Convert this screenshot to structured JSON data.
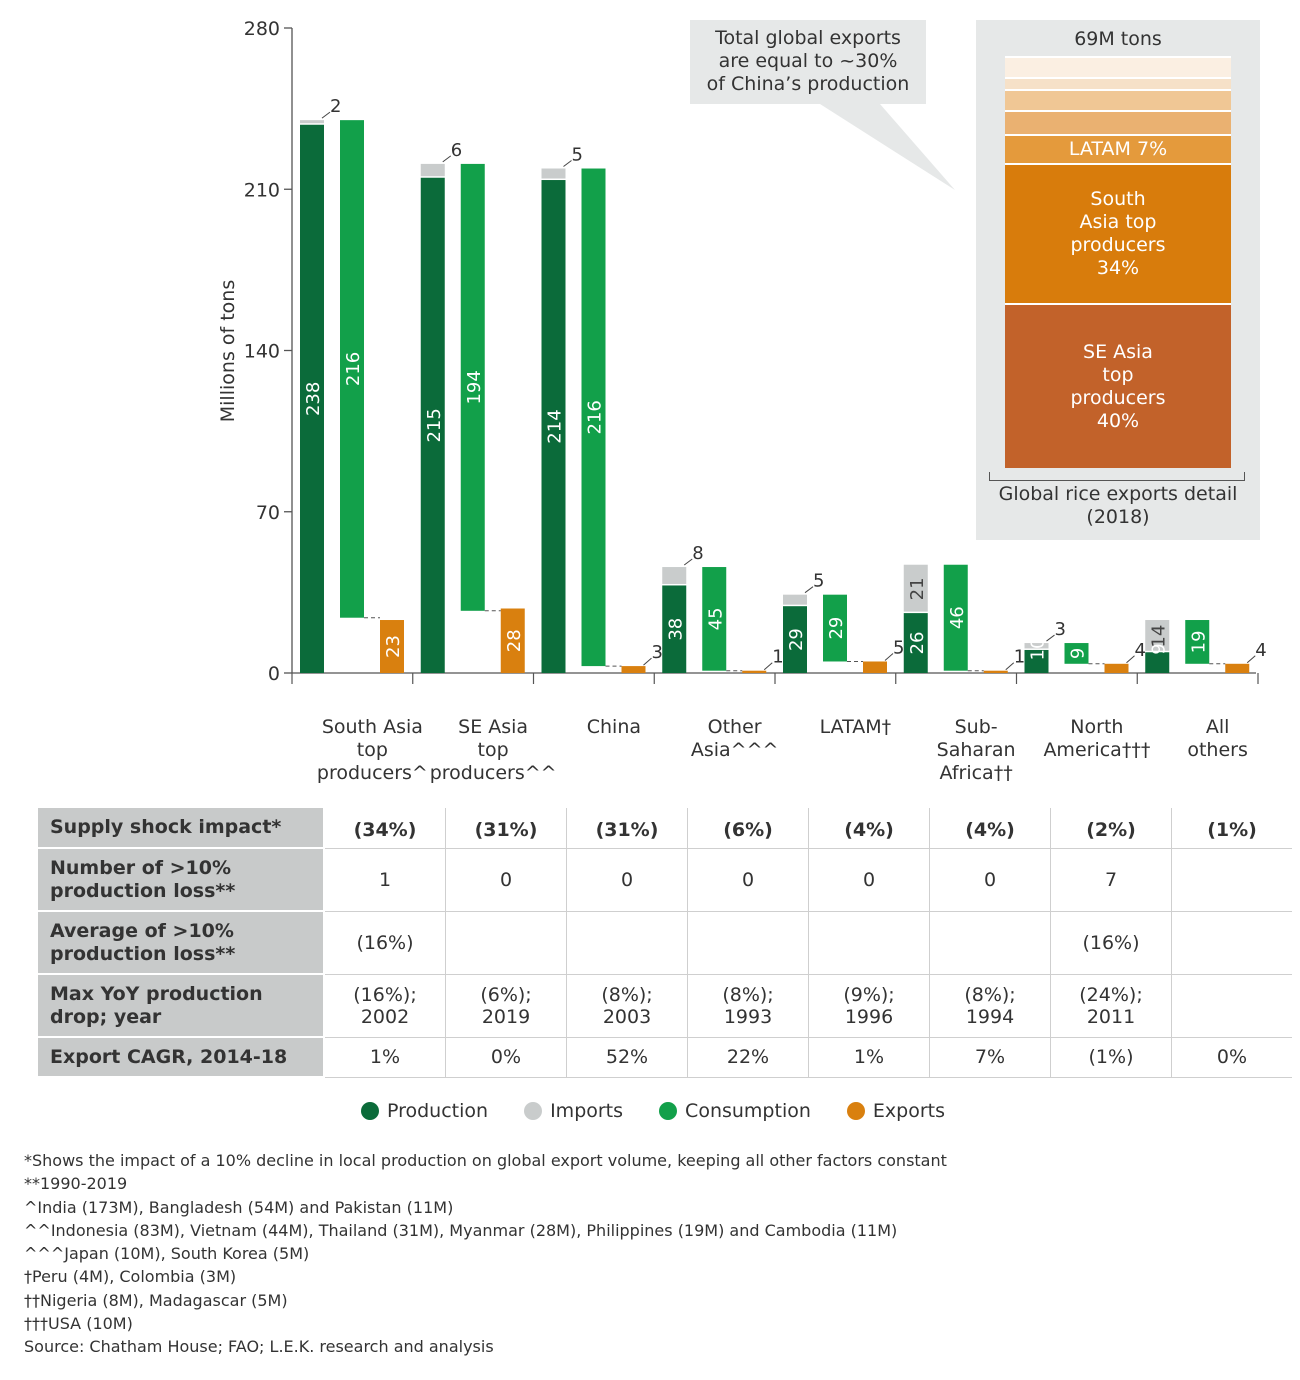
{
  "chart_data": {
    "type": "bar",
    "ylabel": "Millions of tons",
    "ylim": [
      0,
      280
    ],
    "yticks": [
      0,
      70,
      140,
      210,
      280
    ],
    "categories": [
      "South Asia top producers^",
      "SE Asia top producers^^",
      "China",
      "Other Asia^^^",
      "LATAM†",
      "Sub-Saharan Africa††",
      "North America†††",
      "All others"
    ],
    "category_lines": [
      [
        "South Asia",
        "top",
        "producers^"
      ],
      [
        "SE Asia",
        "top",
        "producers^^"
      ],
      [
        "China"
      ],
      [
        "Other",
        "Asia^^^"
      ],
      [
        "LATAM†"
      ],
      [
        "Sub-",
        "Saharan",
        "Africa††"
      ],
      [
        "North",
        "America†††"
      ],
      [
        "All",
        "others"
      ]
    ],
    "series": [
      {
        "name": "Production",
        "color": "#0b6b3a",
        "values": [
          238,
          215,
          214,
          38,
          29,
          26,
          10,
          9
        ]
      },
      {
        "name": "Imports",
        "color": "#c9cccc",
        "values": [
          2,
          6,
          5,
          8,
          5,
          21,
          3,
          14
        ]
      },
      {
        "name": "Consumption",
        "color": "#12a04a",
        "values": [
          216,
          194,
          216,
          45,
          29,
          46,
          9,
          19
        ]
      },
      {
        "name": "Exports",
        "color": "#d9800f",
        "values": [
          23,
          28,
          3,
          1,
          5,
          1,
          4,
          4
        ]
      }
    ],
    "legend_position": "bottom",
    "grid": false
  },
  "callout": [
    "Total global exports",
    "are equal to ~30%",
    "of China’s production"
  ],
  "inset": {
    "total_label": "69M tons",
    "title_lines": [
      "Global rice exports detail",
      "(2018)"
    ],
    "segments": [
      {
        "pct": 40,
        "label_lines": [
          "SE Asia",
          "top",
          "producers",
          "40%"
        ],
        "color": "#c2622a"
      },
      {
        "pct": 34,
        "label_lines": [
          "South",
          "Asia top",
          "producers",
          "34%"
        ],
        "color": "#d87c0c"
      },
      {
        "pct": 7,
        "label_lines": [
          "LATAM 7%"
        ],
        "color": "#e49a3c"
      },
      {
        "pct": 6,
        "label_lines": [],
        "color": "#eab171"
      },
      {
        "pct": 5,
        "label_lines": [],
        "color": "#f0c795"
      },
      {
        "pct": 3,
        "label_lines": [],
        "color": "#f6e1c8"
      },
      {
        "pct": 5,
        "label_lines": [],
        "color": "#fbefe2"
      }
    ]
  },
  "table": {
    "rows": [
      {
        "label": "Supply shock impact*",
        "cells": [
          "(34%)",
          "(31%)",
          "(31%)",
          "(6%)",
          "(4%)",
          "(4%)",
          "(2%)",
          "(1%)"
        ]
      },
      {
        "label": "Number of >10% production loss**",
        "cells": [
          "1",
          "0",
          "0",
          "0",
          "0",
          "0",
          "7",
          ""
        ]
      },
      {
        "label": "Average of >10% production loss**",
        "cells": [
          "(16%)",
          "",
          "",
          "",
          "",
          "",
          "(16%)",
          ""
        ]
      },
      {
        "label": "Max YoY production drop; year",
        "cells": [
          "(16%); 2002",
          "(6%); 2019",
          "(8%); 2003",
          "(8%); 1993",
          "(9%); 1996",
          "(8%); 1994",
          "(24%); 2011",
          ""
        ]
      },
      {
        "label": "Export CAGR, 2014-18",
        "cells": [
          "1%",
          "0%",
          "52%",
          "22%",
          "1%",
          "7%",
          "(1%)",
          "0%"
        ]
      }
    ]
  },
  "legend": [
    {
      "label": "Production",
      "color": "#0b6b3a"
    },
    {
      "label": "Imports",
      "color": "#c9cccc"
    },
    {
      "label": "Consumption",
      "color": "#12a04a"
    },
    {
      "label": "Exports",
      "color": "#d9800f"
    }
  ],
  "notes": [
    "*Shows the impact of a 10% decline in local production on global export volume, keeping all other factors constant",
    "**1990-2019",
    "^India (173M), Bangladesh (54M) and Pakistan (11M)",
    "^^Indonesia (83M), Vietnam (44M), Thailand (31M), Myanmar (28M), Philippines (19M) and Cambodia (11M)",
    "^^^Japan (10M), South Korea (5M)",
    "†Peru (4M), Colombia (3M)",
    "††Nigeria (8M), Madagascar (5M)",
    "†††USA (10M)",
    "Source: Chatham House; FAO; L.E.K. research and analysis"
  ]
}
